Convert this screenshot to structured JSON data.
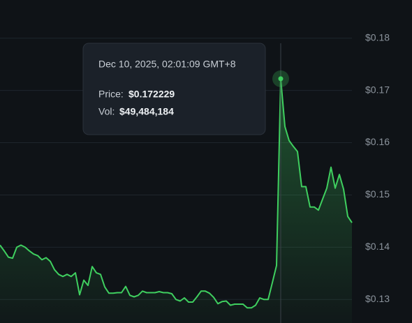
{
  "chart_data": {
    "type": "line",
    "color": "#3fcf5f",
    "values": [
      0.1404,
      0.1393,
      0.1381,
      0.1379,
      0.14,
      0.1404,
      0.14,
      0.1393,
      0.1387,
      0.1384,
      0.1376,
      0.138,
      0.1373,
      0.1357,
      0.1348,
      0.1344,
      0.1348,
      0.1344,
      0.1351,
      0.1309,
      0.1337,
      0.1327,
      0.1363,
      0.1351,
      0.1348,
      0.1324,
      0.1312,
      0.1312,
      0.1313,
      0.1313,
      0.1325,
      0.1308,
      0.1305,
      0.1308,
      0.1316,
      0.1313,
      0.1313,
      0.1313,
      0.1315,
      0.1313,
      0.1313,
      0.1311,
      0.13,
      0.1297,
      0.1303,
      0.1295,
      0.1295,
      0.1305,
      0.1316,
      0.1316,
      0.1312,
      0.1304,
      0.1292,
      0.1296,
      0.1297,
      0.1289,
      0.1291,
      0.1291,
      0.1291,
      0.1284,
      0.1284,
      0.1289,
      0.1303,
      0.13,
      0.13,
      0.1332,
      0.1365,
      0.172229,
      0.1631,
      0.1604,
      0.1593,
      0.1583,
      0.1516,
      0.1516,
      0.1477,
      0.1477,
      0.1471,
      0.1492,
      0.1513,
      0.1553,
      0.1513,
      0.1539,
      0.1511,
      0.1459,
      0.1447
    ],
    "ylim": [
      0.1255,
      0.1873
    ],
    "yticks": [
      {
        "value": 0.13,
        "label": "$0.13"
      },
      {
        "value": 0.14,
        "label": "$0.14"
      },
      {
        "value": 0.15,
        "label": "$0.15"
      },
      {
        "value": 0.16,
        "label": "$0.16"
      },
      {
        "value": 0.17,
        "label": "$0.17"
      },
      {
        "value": 0.18,
        "label": "$0.18"
      }
    ],
    "grid": true,
    "tooltip": {
      "date": "Dec 10, 2025, 02:01:09 GMT+8",
      "price_label": "Price:",
      "price": "$0.172229",
      "vol_label": "Vol:",
      "vol": "$49,484,184"
    }
  }
}
